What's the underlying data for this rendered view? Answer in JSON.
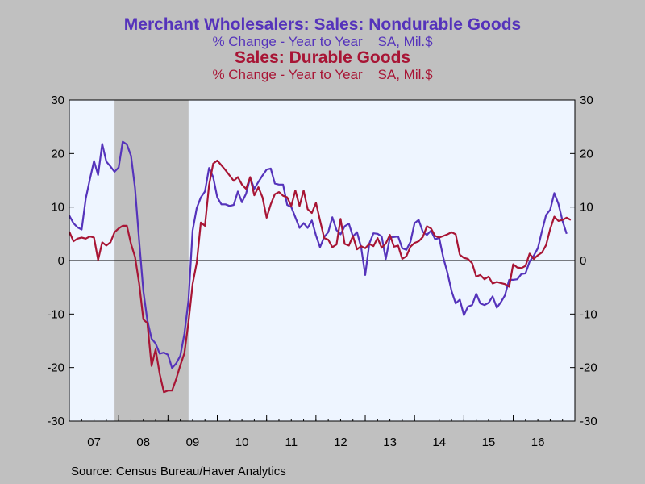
{
  "chart_data": {
    "type": "line",
    "titles": [
      {
        "text": "Merchant Wholesalers: Sales: Nondurable Goods",
        "sub": "% Change - Year to Year    SA, Mil.$"
      },
      {
        "text": "Sales: Durable Goods",
        "sub": "% Change - Year to Year    SA, Mil.$"
      }
    ],
    "source": "Source:  Census Bureau/Haver Analytics",
    "x_tick_labels": [
      "07",
      "08",
      "09",
      "10",
      "11",
      "12",
      "13",
      "14",
      "15",
      "16"
    ],
    "x_range": [
      2007.0,
      2016.917
    ],
    "y_range": [
      -30,
      30
    ],
    "y_ticks": [
      -30,
      -20,
      -10,
      0,
      10,
      20,
      30
    ],
    "recession_shading": [
      2007.917,
      2009.417
    ],
    "zero_line": true,
    "colors": {
      "plot_bg": "#eef5ff",
      "recession": "#c0c0c0",
      "nondurable": "#5533bb",
      "durable": "#a81535"
    },
    "series": [
      {
        "name": "Merchant Wholesalers: Sales: Nondurable Goods",
        "color": "#5533bb",
        "points": [
          [
            2007.0,
            8.4
          ],
          [
            2007.083,
            7.0
          ],
          [
            2007.167,
            6.2
          ],
          [
            2007.25,
            5.8
          ],
          [
            2007.333,
            11.6
          ],
          [
            2007.417,
            15.2
          ],
          [
            2007.5,
            18.6
          ],
          [
            2007.583,
            16.0
          ],
          [
            2007.667,
            21.8
          ],
          [
            2007.75,
            18.5
          ],
          [
            2007.833,
            17.6
          ],
          [
            2007.917,
            16.6
          ],
          [
            2008.0,
            17.4
          ],
          [
            2008.083,
            22.2
          ],
          [
            2008.167,
            21.7
          ],
          [
            2008.25,
            19.6
          ],
          [
            2008.333,
            13.5
          ],
          [
            2008.417,
            3.5
          ],
          [
            2008.5,
            -5.7
          ],
          [
            2008.583,
            -11.2
          ],
          [
            2008.667,
            -14.6
          ],
          [
            2008.75,
            -15.5
          ],
          [
            2008.833,
            -17.4
          ],
          [
            2008.917,
            -17.2
          ],
          [
            2009.0,
            -17.6
          ],
          [
            2009.083,
            -20.1
          ],
          [
            2009.167,
            -19.2
          ],
          [
            2009.25,
            -17.8
          ],
          [
            2009.333,
            -13.7
          ],
          [
            2009.417,
            -7.4
          ],
          [
            2009.5,
            5.6
          ],
          [
            2009.583,
            9.8
          ],
          [
            2009.667,
            11.8
          ],
          [
            2009.75,
            12.9
          ],
          [
            2009.833,
            17.3
          ],
          [
            2009.917,
            15.6
          ],
          [
            2010.0,
            11.8
          ],
          [
            2010.083,
            10.5
          ],
          [
            2010.167,
            10.5
          ],
          [
            2010.25,
            10.2
          ],
          [
            2010.333,
            10.4
          ],
          [
            2010.417,
            12.9
          ],
          [
            2010.5,
            10.9
          ],
          [
            2010.583,
            12.5
          ],
          [
            2010.667,
            15.5
          ],
          [
            2010.75,
            13.4
          ],
          [
            2010.833,
            14.7
          ],
          [
            2010.917,
            15.9
          ],
          [
            2011.0,
            17.0
          ],
          [
            2011.083,
            17.2
          ],
          [
            2011.167,
            14.4
          ],
          [
            2011.25,
            14.2
          ],
          [
            2011.333,
            14.2
          ],
          [
            2011.417,
            10.4
          ],
          [
            2011.5,
            10.0
          ],
          [
            2011.583,
            8.1
          ],
          [
            2011.667,
            6.1
          ],
          [
            2011.75,
            7.0
          ],
          [
            2011.833,
            6.1
          ],
          [
            2011.917,
            7.5
          ],
          [
            2012.0,
            4.7
          ],
          [
            2012.083,
            2.5
          ],
          [
            2012.167,
            4.4
          ],
          [
            2012.25,
            5.3
          ],
          [
            2012.333,
            8.1
          ],
          [
            2012.417,
            5.7
          ],
          [
            2012.5,
            4.9
          ],
          [
            2012.583,
            6.4
          ],
          [
            2012.667,
            6.9
          ],
          [
            2012.75,
            4.5
          ],
          [
            2012.833,
            5.3
          ],
          [
            2012.917,
            2.5
          ],
          [
            2013.0,
            -2.7
          ],
          [
            2013.083,
            3.2
          ],
          [
            2013.167,
            5.1
          ],
          [
            2013.25,
            5.0
          ],
          [
            2013.333,
            4.5
          ],
          [
            2013.417,
            0.3
          ],
          [
            2013.5,
            4.3
          ],
          [
            2013.583,
            4.4
          ],
          [
            2013.667,
            4.5
          ],
          [
            2013.75,
            2.3
          ],
          [
            2013.833,
            2.0
          ],
          [
            2013.917,
            3.5
          ],
          [
            2014.0,
            7.0
          ],
          [
            2014.083,
            7.6
          ],
          [
            2014.167,
            5.4
          ],
          [
            2014.25,
            4.8
          ],
          [
            2014.333,
            5.6
          ],
          [
            2014.417,
            4.0
          ],
          [
            2014.5,
            4.2
          ],
          [
            2014.583,
            0.5
          ],
          [
            2014.667,
            -2.3
          ],
          [
            2014.75,
            -5.7
          ],
          [
            2014.833,
            -8.0
          ],
          [
            2014.917,
            -7.3
          ],
          [
            2015.0,
            -10.2
          ],
          [
            2015.083,
            -8.6
          ],
          [
            2015.167,
            -8.3
          ],
          [
            2015.25,
            -6.2
          ],
          [
            2015.333,
            -8.0
          ],
          [
            2015.417,
            -8.3
          ],
          [
            2015.5,
            -7.9
          ],
          [
            2015.583,
            -6.7
          ],
          [
            2015.667,
            -8.8
          ],
          [
            2015.75,
            -7.8
          ],
          [
            2015.833,
            -6.5
          ],
          [
            2015.917,
            -3.6
          ],
          [
            2016.0,
            -3.6
          ],
          [
            2016.083,
            -3.5
          ],
          [
            2016.167,
            -2.5
          ],
          [
            2016.25,
            -2.4
          ],
          [
            2016.333,
            -0.2
          ],
          [
            2016.417,
            0.9
          ],
          [
            2016.5,
            2.3
          ],
          [
            2016.583,
            5.5
          ],
          [
            2016.667,
            8.5
          ],
          [
            2016.75,
            9.5
          ],
          [
            2016.833,
            12.6
          ],
          [
            2016.917,
            10.6
          ],
          [
            2017.0,
            7.4
          ],
          [
            2017.083,
            5.0
          ]
        ]
      },
      {
        "name": "Sales: Durable Goods",
        "color": "#a81535",
        "points": [
          [
            2007.0,
            5.4
          ],
          [
            2007.083,
            3.6
          ],
          [
            2007.167,
            4.1
          ],
          [
            2007.25,
            4.3
          ],
          [
            2007.333,
            4.1
          ],
          [
            2007.417,
            4.5
          ],
          [
            2007.5,
            4.3
          ],
          [
            2007.583,
            0.1
          ],
          [
            2007.667,
            3.4
          ],
          [
            2007.75,
            2.8
          ],
          [
            2007.833,
            3.4
          ],
          [
            2007.917,
            5.3
          ],
          [
            2008.0,
            6.0
          ],
          [
            2008.083,
            6.5
          ],
          [
            2008.167,
            6.5
          ],
          [
            2008.25,
            3.1
          ],
          [
            2008.333,
            0.7
          ],
          [
            2008.417,
            -4.4
          ],
          [
            2008.5,
            -11.0
          ],
          [
            2008.583,
            -11.7
          ],
          [
            2008.667,
            -19.7
          ],
          [
            2008.75,
            -16.6
          ],
          [
            2008.833,
            -21.2
          ],
          [
            2008.917,
            -24.6
          ],
          [
            2009.0,
            -24.3
          ],
          [
            2009.083,
            -24.3
          ],
          [
            2009.167,
            -22.1
          ],
          [
            2009.25,
            -19.6
          ],
          [
            2009.333,
            -17.3
          ],
          [
            2009.417,
            -11.5
          ],
          [
            2009.5,
            -4.4
          ],
          [
            2009.583,
            -0.4
          ],
          [
            2009.667,
            7.1
          ],
          [
            2009.75,
            6.5
          ],
          [
            2009.833,
            14.1
          ],
          [
            2009.917,
            18.1
          ],
          [
            2010.0,
            18.7
          ],
          [
            2010.083,
            17.8
          ],
          [
            2010.167,
            16.9
          ],
          [
            2010.25,
            15.9
          ],
          [
            2010.333,
            14.9
          ],
          [
            2010.417,
            15.6
          ],
          [
            2010.5,
            14.2
          ],
          [
            2010.583,
            13.4
          ],
          [
            2010.667,
            15.6
          ],
          [
            2010.75,
            12.2
          ],
          [
            2010.833,
            13.7
          ],
          [
            2010.917,
            11.8
          ],
          [
            2011.0,
            8.0
          ],
          [
            2011.083,
            10.5
          ],
          [
            2011.167,
            12.4
          ],
          [
            2011.25,
            12.8
          ],
          [
            2011.333,
            12.1
          ],
          [
            2011.417,
            11.8
          ],
          [
            2011.5,
            10.2
          ],
          [
            2011.583,
            13.1
          ],
          [
            2011.667,
            10.2
          ],
          [
            2011.75,
            13.1
          ],
          [
            2011.833,
            9.6
          ],
          [
            2011.917,
            8.9
          ],
          [
            2012.0,
            10.8
          ],
          [
            2012.083,
            7.5
          ],
          [
            2012.167,
            4.2
          ],
          [
            2012.25,
            3.9
          ],
          [
            2012.333,
            2.5
          ],
          [
            2012.417,
            3.0
          ],
          [
            2012.5,
            7.8
          ],
          [
            2012.583,
            3.1
          ],
          [
            2012.667,
            2.8
          ],
          [
            2012.75,
            4.6
          ],
          [
            2012.833,
            2.1
          ],
          [
            2012.917,
            2.7
          ],
          [
            2013.0,
            2.3
          ],
          [
            2013.083,
            3.1
          ],
          [
            2013.167,
            2.7
          ],
          [
            2013.25,
            4.2
          ],
          [
            2013.333,
            2.4
          ],
          [
            2013.417,
            3.2
          ],
          [
            2013.5,
            4.8
          ],
          [
            2013.583,
            2.6
          ],
          [
            2013.667,
            2.8
          ],
          [
            2013.75,
            0.3
          ],
          [
            2013.833,
            0.8
          ],
          [
            2013.917,
            2.6
          ],
          [
            2014.0,
            3.3
          ],
          [
            2014.083,
            3.6
          ],
          [
            2014.167,
            4.4
          ],
          [
            2014.25,
            6.4
          ],
          [
            2014.333,
            6.0
          ],
          [
            2014.417,
            4.6
          ],
          [
            2014.5,
            4.3
          ],
          [
            2014.583,
            4.6
          ],
          [
            2014.667,
            4.9
          ],
          [
            2014.75,
            5.3
          ],
          [
            2014.833,
            4.9
          ],
          [
            2014.917,
            1.1
          ],
          [
            2015.0,
            0.5
          ],
          [
            2015.083,
            0.3
          ],
          [
            2015.167,
            -0.5
          ],
          [
            2015.25,
            -3.0
          ],
          [
            2015.333,
            -2.7
          ],
          [
            2015.417,
            -3.5
          ],
          [
            2015.5,
            -3.0
          ],
          [
            2015.583,
            -4.3
          ],
          [
            2015.667,
            -4.0
          ],
          [
            2015.75,
            -4.2
          ],
          [
            2015.833,
            -4.4
          ],
          [
            2015.917,
            -4.9
          ],
          [
            2016.0,
            -0.7
          ],
          [
            2016.083,
            -1.3
          ],
          [
            2016.167,
            -1.4
          ],
          [
            2016.25,
            -1.0
          ],
          [
            2016.333,
            1.3
          ],
          [
            2016.417,
            0.3
          ],
          [
            2016.5,
            1.0
          ],
          [
            2016.583,
            1.5
          ],
          [
            2016.667,
            2.9
          ],
          [
            2016.75,
            5.9
          ],
          [
            2016.833,
            8.2
          ],
          [
            2016.917,
            7.4
          ],
          [
            2017.0,
            7.6
          ],
          [
            2017.083,
            8.0
          ],
          [
            2017.167,
            7.6
          ]
        ]
      }
    ]
  }
}
